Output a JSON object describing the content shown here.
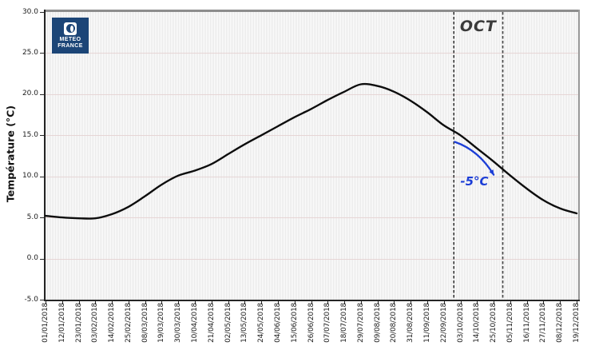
{
  "logo": {
    "name": "Météo France logo",
    "line1": "METEO",
    "line2": "FRANCE",
    "bg_color": "#1c4577"
  },
  "chart_data": {
    "type": "line",
    "title": "",
    "xlabel": "",
    "ylabel": "Température (°C)",
    "ylim": [
      -5.0,
      30.0
    ],
    "yticks": [
      30.0,
      25.0,
      20.0,
      15.0,
      10.0,
      5.0,
      0.0,
      -5.0
    ],
    "ytick_labels": [
      "30.0",
      "25.0",
      "20.0",
      "15.0",
      "10.0",
      "5.0",
      "0.0",
      "-5.0"
    ],
    "grid": {
      "vertical_stripes": true,
      "horizontal": true
    },
    "legend": "none",
    "categories": [
      "01/01/2018",
      "12/01/2018",
      "23/01/2018",
      "03/02/2018",
      "14/02/2018",
      "25/02/2018",
      "08/03/2018",
      "19/03/2018",
      "30/03/2018",
      "10/04/2018",
      "21/04/2018",
      "02/05/2018",
      "13/05/2018",
      "24/05/2018",
      "04/06/2018",
      "15/06/2018",
      "26/06/2018",
      "07/07/2018",
      "18/07/2018",
      "29/07/2018",
      "09/08/2018",
      "20/08/2018",
      "31/08/2018",
      "11/09/2018",
      "22/09/2018",
      "03/10/2018",
      "14/10/2018",
      "25/10/2018",
      "05/11/2018",
      "16/11/2018",
      "27/11/2018",
      "08/12/2018",
      "19/12/2018"
    ],
    "series": [
      {
        "name": "temperature",
        "color": "#0d0d0d",
        "values": [
          5.2,
          5.0,
          4.9,
          4.9,
          5.4,
          6.3,
          7.6,
          9.0,
          10.1,
          10.7,
          11.5,
          12.7,
          13.9,
          15.0,
          16.1,
          17.2,
          18.2,
          19.3,
          20.3,
          21.2,
          21.0,
          20.3,
          19.2,
          17.8,
          16.2,
          15.0,
          13.4,
          11.8,
          10.1,
          8.5,
          7.1,
          6.1,
          5.5
        ]
      }
    ],
    "highlight_band": {
      "label": "OCT",
      "start_date": "01/10/2018",
      "end_date": "31/10/2018",
      "start_tick": 24.6,
      "end_tick": 27.55,
      "line_style": "dashed",
      "line_color": "#3d3d3d",
      "label_color": "#3a3a3a"
    },
    "annotation": {
      "text": "-5°C",
      "color": "#1c3ed6",
      "text_pos": {
        "tick": 25.84,
        "temp": 9.4
      },
      "arrow": {
        "from": {
          "tick": 24.65,
          "temp": 14.2
        },
        "ctrl": {
          "tick": 26.1,
          "temp": 13.2
        },
        "to": {
          "tick": 27.0,
          "temp": 10.2
        }
      }
    }
  }
}
